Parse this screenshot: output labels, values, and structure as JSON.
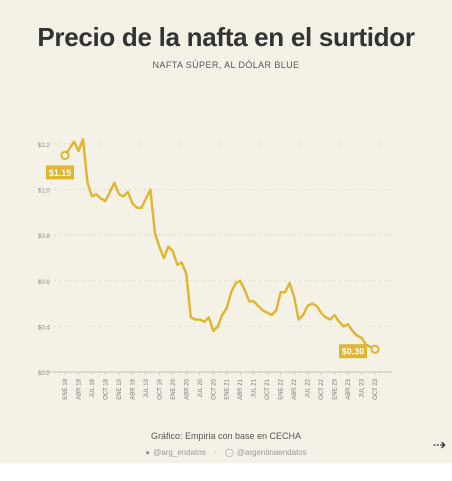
{
  "header": {
    "title": "Precio de la nafta en el surtidor",
    "subtitle": "NAFTA SÚPER, AL DÓLAR BLUE"
  },
  "footer": {
    "credit": "Gráfico: Empiria con base en CECHA",
    "twitter_handle": "@arg_endatos",
    "instagram_handle": "@argentinaendatos",
    "twitter_icon": "twitter-icon",
    "instagram_icon": "instagram-icon",
    "next_icon": "arrow-right-icon",
    "next_glyph": "⇢"
  },
  "colors": {
    "background": "#f4f1e6",
    "line": "#e0b52f",
    "grid": "#dcd6c6"
  },
  "chart_data": {
    "type": "line",
    "title": "Precio de la nafta en el surtidor",
    "subtitle": "NAFTA SÚPER, AL DÓLAR BLUE",
    "xlabel": "",
    "ylabel": "",
    "ylim": [
      0.2,
      1.2
    ],
    "yticks": [
      0.2,
      0.4,
      0.6,
      0.8,
      1.0,
      1.2
    ],
    "ytick_labels": [
      "$0.2",
      "$0.4",
      "$0.6",
      "$0.8",
      "$1.0",
      "$1.2"
    ],
    "grid": true,
    "xtick_labels": [
      "ENE 18",
      "ABR 18",
      "JUL 18",
      "OCT 18",
      "ENE 19",
      "ABR 19",
      "JUL 19",
      "OCT 19",
      "ENE 20",
      "ABR 20",
      "JUL 20",
      "OCT 20",
      "ENE 21",
      "ABR 21",
      "JUL 21",
      "OCT 21",
      "ENE 22",
      "ABR 22",
      "JUL 22",
      "OCT 22",
      "ENE 23",
      "ABR 23",
      "JUL 23",
      "OCT 23"
    ],
    "annotations": [
      {
        "label": "$1.15",
        "point_index": 0
      },
      {
        "label": "$0.30",
        "point_index": 69
      }
    ],
    "series": [
      {
        "values": [
          1.15,
          1.18,
          1.21,
          1.17,
          1.22,
          1.03,
          0.97,
          0.98,
          0.96,
          0.95,
          0.99,
          1.03,
          0.98,
          0.97,
          0.99,
          0.94,
          0.92,
          0.92,
          0.96,
          1.0,
          0.81,
          0.75,
          0.7,
          0.75,
          0.73,
          0.67,
          0.68,
          0.63,
          0.44,
          0.43,
          0.43,
          0.42,
          0.44,
          0.38,
          0.4,
          0.45,
          0.48,
          0.55,
          0.59,
          0.6,
          0.56,
          0.51,
          0.51,
          0.49,
          0.47,
          0.46,
          0.45,
          0.47,
          0.55,
          0.55,
          0.59,
          0.53,
          0.43,
          0.45,
          0.49,
          0.5,
          0.49,
          0.46,
          0.44,
          0.43,
          0.45,
          0.42,
          0.4,
          0.41,
          0.38,
          0.36,
          0.35,
          0.32,
          0.31,
          0.3
        ]
      }
    ]
  }
}
